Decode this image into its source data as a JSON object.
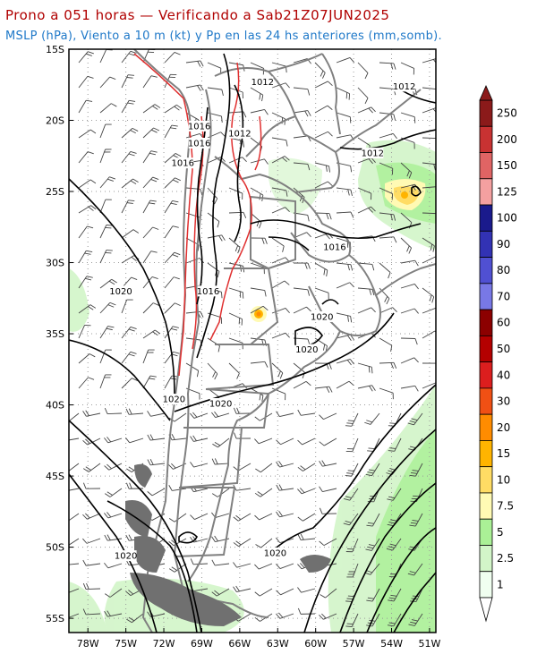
{
  "title": {
    "line1": "Prono a 051 horas — Verificando a Sab21Z07JUN2025",
    "line2": "MSLP (hPa), Viento a 10 m (kt) y Pp en las 24 hs anteriores (mm,somb)."
  },
  "axes": {
    "lat_labels": [
      "15S",
      "20S",
      "25S",
      "30S",
      "35S",
      "40S",
      "45S",
      "50S",
      "55S"
    ],
    "lon_labels": [
      "78W",
      "75W",
      "72W",
      "69W",
      "66W",
      "63W",
      "60W",
      "57W",
      "54W",
      "51W"
    ]
  },
  "isobars": {
    "labels": [
      {
        "text": "1012",
        "lon": -64.2,
        "lat": -17.3
      },
      {
        "text": "1012",
        "lon": -53.0,
        "lat": -17.6
      },
      {
        "text": "1016",
        "lon": -69.2,
        "lat": -20.4
      },
      {
        "text": "1012",
        "lon": -66.0,
        "lat": -20.9
      },
      {
        "text": "1016",
        "lon": -69.2,
        "lat": -21.6
      },
      {
        "text": "1012",
        "lon": -55.5,
        "lat": -22.3
      },
      {
        "text": "1016",
        "lon": -70.5,
        "lat": -23.0
      },
      {
        "text": "1016",
        "lon": -58.5,
        "lat": -28.9
      },
      {
        "text": "1020",
        "lon": -75.4,
        "lat": -32.0
      },
      {
        "text": "1016",
        "lon": -68.5,
        "lat": -32.0
      },
      {
        "text": "1020",
        "lon": -59.5,
        "lat": -33.8
      },
      {
        "text": "1020",
        "lon": -60.7,
        "lat": -36.1
      },
      {
        "text": "1020",
        "lon": -71.2,
        "lat": -39.6
      },
      {
        "text": "1020",
        "lon": -67.5,
        "lat": -39.9
      },
      {
        "text": "1020",
        "lon": -63.2,
        "lat": -50.4
      },
      {
        "text": "1020",
        "lon": -75.0,
        "lat": -50.6
      }
    ]
  },
  "colorbar": {
    "labels": [
      "250",
      "200",
      "150",
      "125",
      "100",
      "90",
      "80",
      "70",
      "60",
      "50",
      "40",
      "30",
      "20",
      "15",
      "10",
      "7.5",
      "5",
      "2.5",
      "1"
    ],
    "colors": [
      "#8b1a1a",
      "#c83232",
      "#e06464",
      "#f4a0a0",
      "#1a1a8c",
      "#3232b4",
      "#5050d2",
      "#7878e6",
      "#8c0000",
      "#b40000",
      "#dc1e1e",
      "#f05014",
      "#ff8c00",
      "#ffb400",
      "#ffdc64",
      "#fffab4",
      "#aaf096",
      "#d2f5c8",
      "#f0fff0"
    ]
  },
  "precip_areas": [
    {
      "name": "east-brazil-cell",
      "lon": -52.0,
      "lat": -24.8,
      "amount": "15"
    },
    {
      "name": "central-argentina-cell",
      "lon": -64.2,
      "lat": -33.7,
      "amount": "20"
    }
  ]
}
